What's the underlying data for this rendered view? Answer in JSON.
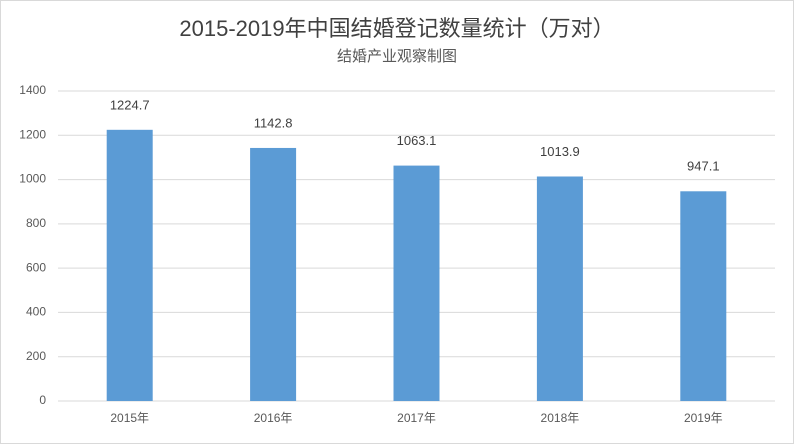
{
  "chart_data": {
    "type": "bar",
    "title": "2015-2019年中国结婚登记数量统计（万对）",
    "subtitle": "结婚产业观察制图",
    "categories": [
      "2015年",
      "2016年",
      "2017年",
      "2018年",
      "2019年"
    ],
    "values": [
      1224.7,
      1142.8,
      1063.1,
      1013.9,
      947.1
    ],
    "color": "#5b9bd5",
    "ylim": [
      0,
      1400
    ],
    "yticks": [
      0,
      200,
      400,
      600,
      800,
      1000,
      1200,
      1400
    ],
    "grid": true
  }
}
